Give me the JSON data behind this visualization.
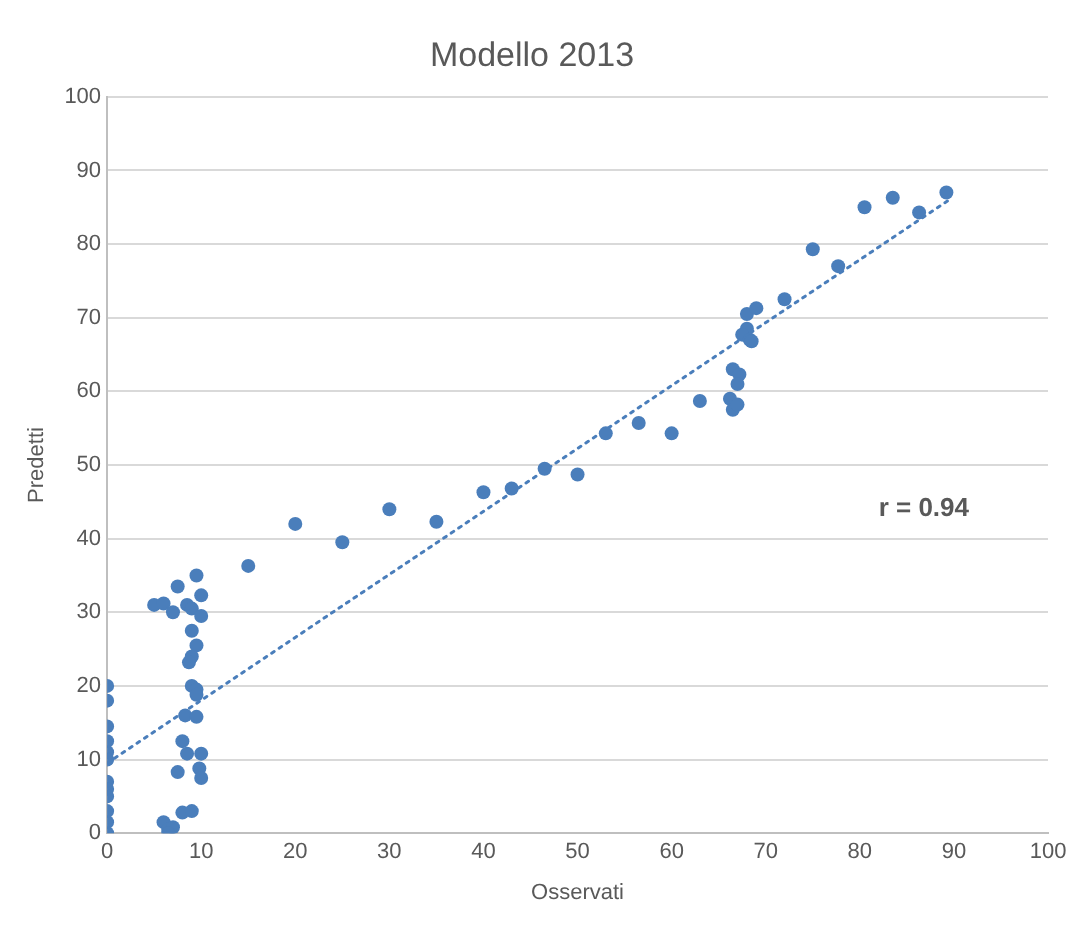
{
  "chart_data": {
    "type": "scatter",
    "title": "Modello 2013",
    "xlabel": "Osservati",
    "ylabel": "Predetti",
    "xlim": [
      0,
      100
    ],
    "ylim": [
      0,
      100
    ],
    "xticks": [
      0,
      10,
      20,
      30,
      40,
      50,
      60,
      70,
      80,
      90,
      100
    ],
    "yticks": [
      0,
      10,
      20,
      30,
      40,
      50,
      60,
      70,
      80,
      90,
      100
    ],
    "grid": "y",
    "legend": false,
    "marker": "circle",
    "annotations": [
      "r = 0.94"
    ],
    "series": [
      {
        "color": "#4a7ebb",
        "x": [
          0,
          0,
          0,
          0,
          0,
          0,
          0,
          0,
          0,
          0,
          0,
          0,
          5,
          6,
          7,
          7.5,
          8.5,
          9.5,
          9,
          10,
          10,
          9,
          9.5,
          9,
          8.7,
          9,
          9.5,
          9.5,
          8.3,
          9.5,
          8,
          8.5,
          10,
          7.5,
          9.8,
          10,
          8,
          9,
          6,
          6.5,
          7,
          6.5,
          15,
          20,
          25,
          30,
          35,
          40,
          43,
          46.5,
          50,
          53,
          56.5,
          60,
          63,
          66.2,
          66.5,
          67,
          66.5,
          67.2,
          67,
          68,
          67.5,
          68.3,
          68.5,
          68,
          69,
          72,
          75,
          77.7,
          80.5,
          83.5,
          86.3,
          89.2
        ],
        "values": [
          20,
          18,
          14.5,
          12.5,
          11,
          10,
          7,
          6,
          5,
          3,
          1.5,
          0,
          31,
          31.2,
          30,
          33.5,
          31,
          35,
          30.5,
          32.3,
          29.5,
          27.5,
          25.5,
          24,
          23.2,
          20,
          19.5,
          18.8,
          16,
          15.8,
          12.5,
          10.8,
          10.8,
          8.3,
          8.8,
          7.5,
          2.8,
          3,
          1.5,
          0.5,
          0.8,
          0,
          36.3,
          42,
          39.5,
          44,
          42.3,
          46.3,
          46.8,
          49.5,
          48.7,
          54.3,
          55.7,
          54.3,
          58.7,
          59,
          57.5,
          58.2,
          63,
          62.3,
          61,
          68.5,
          67.7,
          67,
          66.8,
          70.5,
          71.3,
          72.5,
          79.3,
          77,
          85,
          86.3,
          84.3,
          87
        ]
      },
      {
        "type": "line",
        "color": "#4a7ebb",
        "line_style": "dotted",
        "marker": "none",
        "x": [
          0,
          89.5
        ],
        "values": [
          9.5,
          86
        ]
      }
    ]
  }
}
